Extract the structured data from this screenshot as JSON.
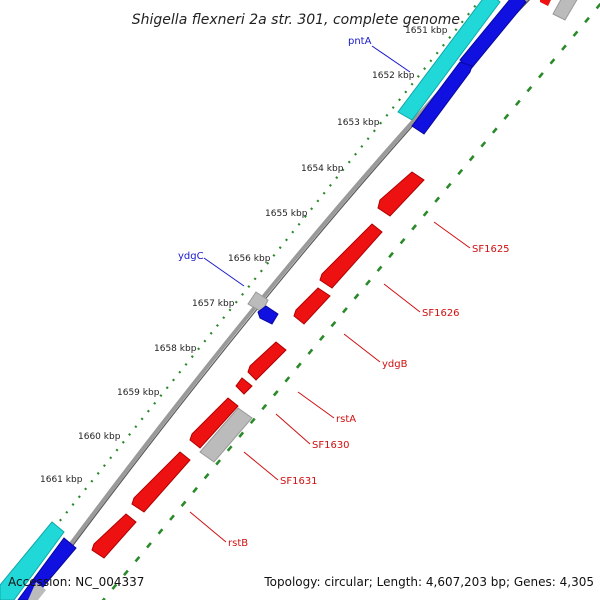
{
  "title": "Shigella flexneri 2a str. 301, complete genome",
  "accession": "Accession: NC_004337",
  "summary": "Topology: circular; Length: 4,607,203 bp; Genes: 4,305",
  "colors": {
    "backbone": "#888888",
    "ticks": "#2a8a2a",
    "forward_cds": "#1010e0",
    "forward_gene": "#20d8d8",
    "reverse_cds": "#ee1111",
    "other": "#bbbbbb",
    "label_forward": "#1a1acc",
    "label_reverse": "#d01010"
  },
  "tick_labels": [
    "1651 kbp",
    "1652 kbp",
    "1653 kbp",
    "1654 kbp",
    "1655 kbp",
    "1656 kbp",
    "1657 kbp",
    "1658 kbp",
    "1659 kbp",
    "1660 kbp",
    "1661 kbp"
  ],
  "genes": [
    {
      "name": "pntA",
      "strand": "forward"
    },
    {
      "name": "ydgC",
      "strand": "forward"
    },
    {
      "name": "SF1625",
      "strand": "reverse"
    },
    {
      "name": "SF1626",
      "strand": "reverse"
    },
    {
      "name": "ydgB",
      "strand": "reverse"
    },
    {
      "name": "rstA",
      "strand": "reverse"
    },
    {
      "name": "SF1630",
      "strand": "reverse"
    },
    {
      "name": "SF1631",
      "strand": "reverse"
    },
    {
      "name": "rstB",
      "strand": "reverse"
    }
  ]
}
